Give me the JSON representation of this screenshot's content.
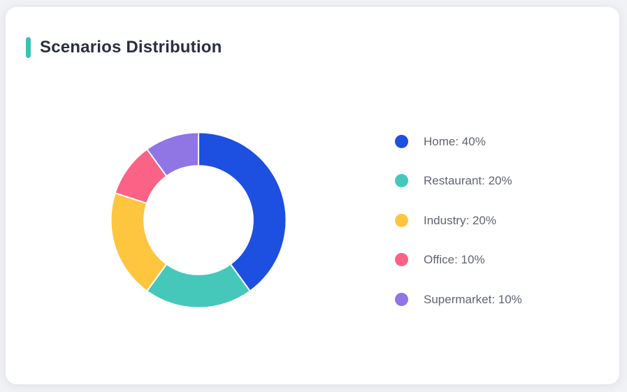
{
  "page": {
    "background_color": "#f1f2f5"
  },
  "card": {
    "title": "Scenarios Distribution",
    "accent_color": "#3cc2b4",
    "background_color": "#ffffff",
    "title_color": "#27303f"
  },
  "chart_data": {
    "type": "pie",
    "subtype": "donut",
    "title": "Scenarios Distribution",
    "categories": [
      "Home",
      "Restaurant",
      "Industry",
      "Office",
      "Supermarket"
    ],
    "values": [
      40,
      20,
      20,
      10,
      10
    ],
    "unit": "%",
    "colors": [
      "#1d4fe0",
      "#45c8ba",
      "#fec53e",
      "#fa6286",
      "#9075e5"
    ],
    "legend_labels": [
      "Home: 40%",
      "Restaurant: 20%",
      "Industry: 20%",
      "Office: 10%",
      "Supermarket: 10%"
    ],
    "start_angle_deg": 0,
    "direction": "clockwise",
    "inner_radius_ratio": 0.62,
    "slice_separator_color": "#ffffff",
    "legend_position": "right",
    "legend_text_color": "#5f6470"
  }
}
